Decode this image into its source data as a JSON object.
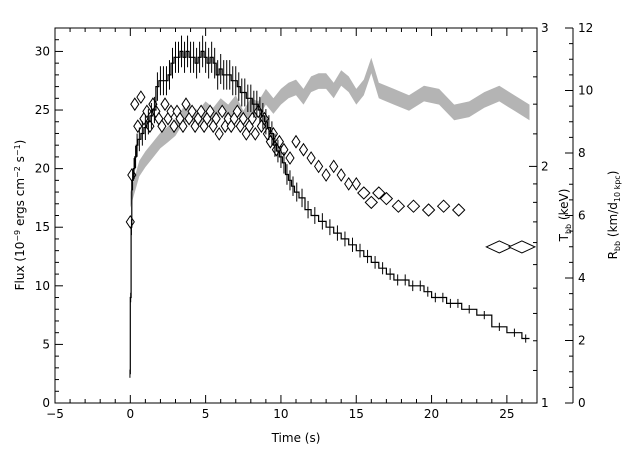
{
  "chart_data": {
    "type": "line",
    "xlabel": "Time (s)",
    "xlim": [
      -5,
      27
    ],
    "x_ticks": [
      -5,
      0,
      5,
      10,
      15,
      20,
      25
    ],
    "axes": {
      "flux": {
        "label_parts": [
          "Flux (10",
          "−9",
          " ergs cm",
          "−2",
          " s",
          "−1",
          ")"
        ],
        "ylim": [
          0,
          32
        ],
        "ticks": [
          0,
          5,
          10,
          15,
          20,
          25,
          30
        ]
      },
      "tbb": {
        "label_main": "T",
        "label_sub": "bb",
        "label_tail": " (keV)",
        "scale": "log",
        "ylim": [
          1,
          3
        ],
        "ticks": [
          1,
          2,
          3
        ]
      },
      "rbb": {
        "label_main": "R",
        "label_sub": "bb",
        "label_mid": " (km/d",
        "label_sub2": "10 kpc",
        "label_tail": ")",
        "ylim": [
          0,
          12
        ],
        "ticks": [
          0,
          2,
          4,
          6,
          8,
          10,
          12
        ]
      }
    },
    "series": [
      {
        "id": "flux",
        "style": "step-with-errorbars",
        "axis": "flux",
        "color": "#000000",
        "x": [
          -0.05,
          0.0,
          0.05,
          0.1,
          0.2,
          0.3,
          0.4,
          0.5,
          0.7,
          0.9,
          1.1,
          1.3,
          1.5,
          1.7,
          1.9,
          2.1,
          2.3,
          2.5,
          2.7,
          2.9,
          3.1,
          3.3,
          3.5,
          3.7,
          3.9,
          4.1,
          4.3,
          4.5,
          4.7,
          4.9,
          5.1,
          5.3,
          5.5,
          5.7,
          5.9,
          6.1,
          6.3,
          6.5,
          6.7,
          6.9,
          7.1,
          7.3,
          7.5,
          7.7,
          7.9,
          8.1,
          8.3,
          8.5,
          8.7,
          8.9,
          9.1,
          9.3,
          9.5,
          9.7,
          9.9,
          10.1,
          10.3,
          10.5,
          10.7,
          10.9,
          11.2,
          11.6,
          12.0,
          12.5,
          13.0,
          13.5,
          14.0,
          14.5,
          15.0,
          15.5,
          16.0,
          16.5,
          17.0,
          17.5,
          18.0,
          18.5,
          19.0,
          19.5,
          20.0,
          20.5,
          21.0,
          21.5,
          22.0,
          23.0,
          24.0,
          25.0,
          26.0
        ],
        "values": [
          2.5,
          9,
          15,
          19,
          20,
          21,
          22,
          22.5,
          23,
          23.5,
          24,
          24.5,
          25,
          27,
          27.5,
          27.5,
          27.5,
          28,
          29,
          29.5,
          29.5,
          30,
          29.5,
          30,
          29.5,
          29.5,
          29,
          29.5,
          30,
          29.5,
          29,
          29.5,
          29,
          28,
          28.5,
          28,
          28,
          28,
          27.5,
          27.5,
          27,
          26.5,
          26.5,
          26,
          26,
          25.5,
          25.5,
          25,
          24.5,
          24,
          23.5,
          23,
          22,
          21.5,
          21,
          20.5,
          19.5,
          19,
          18.5,
          18,
          17.5,
          16.5,
          16,
          15.5,
          15,
          14.5,
          14,
          13.5,
          13,
          12.5,
          12,
          11.5,
          11,
          10.5,
          10.5,
          10,
          10,
          9.5,
          9,
          9,
          8.5,
          8.5,
          8,
          7.5,
          6.5,
          6,
          5.5
        ]
      },
      {
        "id": "temperature",
        "style": "diamonds",
        "axis": "tbb",
        "color": "#000000",
        "x": [
          0.0,
          0.1,
          0.3,
          0.5,
          0.7,
          0.9,
          1.1,
          1.3,
          1.5,
          1.7,
          1.9,
          2.1,
          2.3,
          2.5,
          2.7,
          2.9,
          3.1,
          3.3,
          3.5,
          3.7,
          3.9,
          4.1,
          4.3,
          4.5,
          4.7,
          4.9,
          5.1,
          5.3,
          5.5,
          5.7,
          5.9,
          6.1,
          6.3,
          6.5,
          6.7,
          6.9,
          7.1,
          7.3,
          7.5,
          7.7,
          7.9,
          8.1,
          8.3,
          8.5,
          8.7,
          8.9,
          9.1,
          9.3,
          9.5,
          9.7,
          9.9,
          10.2,
          10.6,
          11.0,
          11.5,
          12.0,
          12.5,
          13.0,
          13.5,
          14.0,
          14.5,
          15.0,
          15.5,
          16.0,
          16.5,
          17.0,
          17.8,
          18.8,
          19.8,
          20.8,
          21.8,
          24.5,
          26.0
        ],
        "values": [
          1.7,
          1.95,
          2.4,
          2.25,
          2.45,
          2.3,
          2.35,
          2.25,
          2.4,
          2.35,
          2.3,
          2.25,
          2.4,
          2.3,
          2.35,
          2.25,
          2.35,
          2.3,
          2.25,
          2.4,
          2.3,
          2.35,
          2.25,
          2.3,
          2.35,
          2.25,
          2.3,
          2.35,
          2.25,
          2.3,
          2.2,
          2.35,
          2.25,
          2.3,
          2.25,
          2.3,
          2.35,
          2.25,
          2.3,
          2.2,
          2.25,
          2.3,
          2.2,
          2.35,
          2.25,
          2.3,
          2.2,
          2.15,
          2.2,
          2.1,
          2.15,
          2.1,
          2.05,
          2.15,
          2.1,
          2.05,
          2.0,
          1.95,
          2.0,
          1.95,
          1.9,
          1.9,
          1.85,
          1.8,
          1.85,
          1.82,
          1.78,
          1.78,
          1.76,
          1.78,
          1.76,
          1.58,
          1.58
        ]
      },
      {
        "id": "radius",
        "style": "band",
        "axis": "rbb",
        "color": "#b4b4b4",
        "x": [
          0.0,
          0.3,
          0.6,
          1.0,
          1.5,
          2.0,
          2.5,
          3.0,
          3.5,
          4.0,
          4.5,
          5.0,
          5.5,
          6.0,
          6.5,
          7.0,
          7.5,
          8.0,
          8.5,
          9.0,
          9.5,
          10.0,
          10.5,
          11.0,
          11.5,
          12.0,
          12.5,
          13.0,
          13.5,
          14.0,
          14.5,
          15.0,
          15.5,
          16.0,
          16.5,
          17.5,
          18.5,
          19.5,
          20.5,
          21.5,
          22.5,
          23.5,
          24.5,
          25.5,
          26.5
        ],
        "values": [
          6.5,
          7.0,
          7.5,
          7.8,
          8.1,
          8.4,
          8.6,
          8.8,
          9.2,
          9.3,
          9.1,
          9.4,
          9.2,
          9.5,
          9.3,
          9.6,
          9.1,
          9.5,
          9.4,
          9.8,
          9.5,
          9.8,
          10.0,
          10.1,
          9.8,
          10.2,
          10.3,
          10.3,
          10.0,
          10.4,
          10.2,
          9.8,
          10.1,
          10.8,
          10.0,
          9.8,
          9.6,
          9.9,
          9.8,
          9.3,
          9.4,
          9.7,
          9.9,
          9.6,
          9.3
        ],
        "half_width": 0.25
      }
    ],
    "grid": false,
    "legend": "none"
  }
}
